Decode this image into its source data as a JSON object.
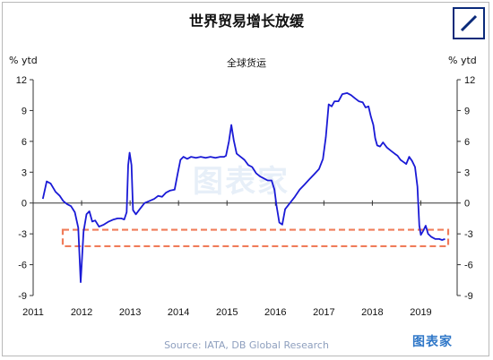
{
  "page": {
    "title": "世界贸易增长放缓",
    "source": "Source: IATA, DB Global Research",
    "brand": "图表家",
    "watermark": "图表家"
  },
  "logos": {
    "db_logo_icon": "deutsche-bank-logo-icon"
  },
  "chart_data": {
    "type": "line",
    "title": "全球货运",
    "ylabel_left": "% ytd",
    "ylabel_right": "% ytd",
    "xlim": [
      2011.0,
      2019.75
    ],
    "ylim": [
      -9,
      12
    ],
    "x_ticks": [
      "2011",
      "2012",
      "2013",
      "2014",
      "2015",
      "2016",
      "2017",
      "2018",
      "2019"
    ],
    "y_ticks": [
      12,
      9,
      6,
      3,
      0,
      -3,
      -6,
      -9
    ],
    "y_tick_labels": [
      "12",
      "9",
      "6",
      "3",
      "0",
      "-3",
      "-6",
      "-9"
    ],
    "grid": false,
    "line_color": "#1a1ad6",
    "highlight_box": {
      "y_range": [
        -4.2,
        -2.6
      ],
      "color": "#f07c5a",
      "style": "dashed"
    },
    "series": [
      {
        "points": [
          [
            2011.2,
            0.4
          ],
          [
            2011.28,
            2.1
          ],
          [
            2011.36,
            1.9
          ],
          [
            2011.46,
            1.1
          ],
          [
            2011.55,
            0.7
          ],
          [
            2011.62,
            0.2
          ],
          [
            2011.7,
            -0.1
          ],
          [
            2011.78,
            -0.3
          ],
          [
            2011.86,
            -0.9
          ],
          [
            2011.93,
            -2.4
          ],
          [
            2011.98,
            -7.7
          ],
          [
            2012.04,
            -2.8
          ],
          [
            2012.1,
            -1.1
          ],
          [
            2012.16,
            -0.8
          ],
          [
            2012.22,
            -1.8
          ],
          [
            2012.28,
            -1.7
          ],
          [
            2012.36,
            -2.3
          ],
          [
            2012.46,
            -2.1
          ],
          [
            2012.56,
            -1.8
          ],
          [
            2012.66,
            -1.6
          ],
          [
            2012.74,
            -1.5
          ],
          [
            2012.82,
            -1.5
          ],
          [
            2012.88,
            -1.6
          ],
          [
            2012.93,
            -0.9
          ],
          [
            2012.96,
            3.7
          ],
          [
            2012.99,
            4.9
          ],
          [
            2013.03,
            3.7
          ],
          [
            2013.06,
            -0.7
          ],
          [
            2013.12,
            -1.1
          ],
          [
            2013.2,
            -0.6
          ],
          [
            2013.3,
            0.0
          ],
          [
            2013.4,
            0.2
          ],
          [
            2013.5,
            0.4
          ],
          [
            2013.58,
            0.7
          ],
          [
            2013.66,
            0.6
          ],
          [
            2013.74,
            1.0
          ],
          [
            2013.82,
            1.2
          ],
          [
            2013.92,
            1.3
          ],
          [
            2013.98,
            2.8
          ],
          [
            2014.04,
            4.2
          ],
          [
            2014.1,
            4.5
          ],
          [
            2014.18,
            4.3
          ],
          [
            2014.26,
            4.5
          ],
          [
            2014.36,
            4.4
          ],
          [
            2014.46,
            4.5
          ],
          [
            2014.56,
            4.4
          ],
          [
            2014.66,
            4.5
          ],
          [
            2014.76,
            4.4
          ],
          [
            2014.86,
            4.5
          ],
          [
            2014.94,
            4.5
          ],
          [
            2014.98,
            4.6
          ],
          [
            2015.04,
            6.0
          ],
          [
            2015.09,
            7.6
          ],
          [
            2015.14,
            6.1
          ],
          [
            2015.2,
            4.8
          ],
          [
            2015.28,
            4.5
          ],
          [
            2015.36,
            4.2
          ],
          [
            2015.44,
            3.7
          ],
          [
            2015.52,
            3.5
          ],
          [
            2015.6,
            2.9
          ],
          [
            2015.68,
            2.6
          ],
          [
            2015.76,
            2.4
          ],
          [
            2015.84,
            2.2
          ],
          [
            2015.92,
            2.2
          ],
          [
            2015.98,
            1.3
          ],
          [
            2016.02,
            -0.2
          ],
          [
            2016.08,
            -1.9
          ],
          [
            2016.14,
            -2.1
          ],
          [
            2016.2,
            -0.6
          ],
          [
            2016.3,
            0.0
          ],
          [
            2016.4,
            0.6
          ],
          [
            2016.5,
            1.3
          ],
          [
            2016.6,
            1.8
          ],
          [
            2016.7,
            2.3
          ],
          [
            2016.8,
            2.8
          ],
          [
            2016.9,
            3.3
          ],
          [
            2016.98,
            4.3
          ],
          [
            2017.04,
            6.4
          ],
          [
            2017.1,
            9.6
          ],
          [
            2017.16,
            9.4
          ],
          [
            2017.22,
            9.9
          ],
          [
            2017.3,
            9.9
          ],
          [
            2017.38,
            10.6
          ],
          [
            2017.48,
            10.7
          ],
          [
            2017.56,
            10.5
          ],
          [
            2017.64,
            10.2
          ],
          [
            2017.72,
            9.9
          ],
          [
            2017.8,
            9.8
          ],
          [
            2017.86,
            9.3
          ],
          [
            2017.92,
            9.4
          ],
          [
            2017.97,
            8.4
          ],
          [
            2018.02,
            7.6
          ],
          [
            2018.06,
            6.3
          ],
          [
            2018.1,
            5.6
          ],
          [
            2018.16,
            5.5
          ],
          [
            2018.22,
            5.9
          ],
          [
            2018.3,
            5.4
          ],
          [
            2018.38,
            5.1
          ],
          [
            2018.46,
            4.8
          ],
          [
            2018.52,
            4.6
          ],
          [
            2018.58,
            4.2
          ],
          [
            2018.64,
            4.0
          ],
          [
            2018.7,
            3.8
          ],
          [
            2018.76,
            4.5
          ],
          [
            2018.82,
            4.1
          ],
          [
            2018.88,
            3.5
          ],
          [
            2018.93,
            1.6
          ],
          [
            2018.97,
            -2.2
          ],
          [
            2019.0,
            -3.1
          ],
          [
            2019.05,
            -2.7
          ],
          [
            2019.1,
            -2.2
          ],
          [
            2019.15,
            -3.0
          ],
          [
            2019.22,
            -3.3
          ],
          [
            2019.3,
            -3.5
          ],
          [
            2019.38,
            -3.5
          ],
          [
            2019.44,
            -3.6
          ],
          [
            2019.5,
            -3.5
          ]
        ]
      }
    ]
  }
}
